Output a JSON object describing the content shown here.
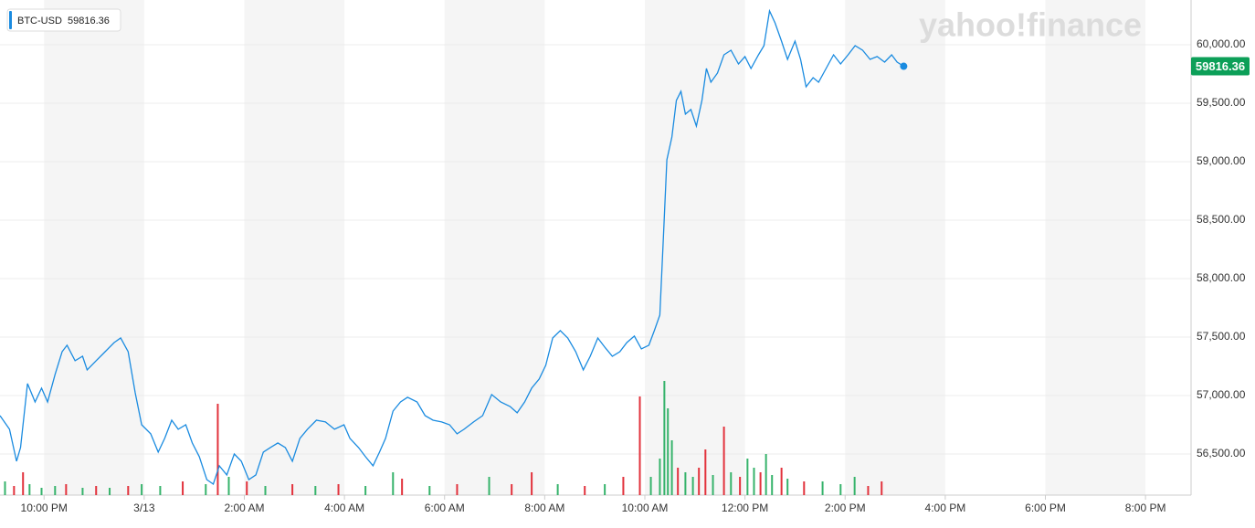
{
  "chart_data": {
    "type": "line",
    "watermark": "yahoo!finance",
    "x": [
      -2.88,
      -2.69,
      -2.55,
      -2.47,
      -2.33,
      -2.18,
      -2.05,
      -1.93,
      -1.78,
      -1.64,
      -1.54,
      -1.38,
      -1.23,
      -1.14,
      -0.96,
      -0.78,
      -0.6,
      -0.47,
      -0.32,
      -0.18,
      -0.05,
      0.13,
      0.28,
      0.41,
      0.55,
      0.68,
      0.83,
      0.96,
      1.1,
      1.25,
      1.38,
      1.5,
      1.65,
      1.8,
      1.94,
      2.09,
      2.23,
      2.38,
      2.52,
      2.67,
      2.82,
      2.96,
      3.11,
      3.26,
      3.44,
      3.62,
      3.8,
      3.99,
      4.11,
      4.28,
      4.42,
      4.57,
      4.7,
      4.82,
      4.97,
      5.12,
      5.26,
      5.45,
      5.61,
      5.77,
      5.94,
      6.1,
      6.25,
      6.39,
      6.58,
      6.76,
      6.94,
      7.12,
      7.31,
      7.45,
      7.6,
      7.74,
      7.89,
      8.02,
      8.16,
      8.31,
      8.46,
      8.62,
      8.77,
      8.91,
      9.06,
      9.2,
      9.35,
      9.5,
      9.64,
      9.79,
      9.93,
      10.08,
      10.19,
      10.3,
      10.37,
      10.44,
      10.54,
      10.63,
      10.72,
      10.81,
      10.92,
      11.03,
      11.14,
      11.23,
      11.32,
      11.45,
      11.58,
      11.72,
      11.87,
      12.0,
      12.12,
      12.27,
      12.38,
      12.49,
      12.6,
      12.73,
      12.85,
      13.0,
      13.11,
      13.22,
      13.36,
      13.47,
      13.62,
      13.77,
      13.91,
      14.06,
      14.2,
      14.35,
      14.5,
      14.64,
      14.79,
      14.93,
      15.04,
      15.17
    ],
    "series": [
      {
        "name": "BTC-USD",
        "color": "#1a8be0",
        "values": [
          56828,
          56711,
          56438,
          56555,
          57102,
          56945,
          57063,
          56945,
          57180,
          57375,
          57430,
          57297,
          57336,
          57219,
          57297,
          57375,
          57453,
          57492,
          57375,
          57024,
          56750,
          56672,
          56516,
          56633,
          56789,
          56711,
          56750,
          56594,
          56477,
          56281,
          56242,
          56399,
          56321,
          56500,
          56438,
          56281,
          56321,
          56516,
          56555,
          56594,
          56555,
          56438,
          56633,
          56711,
          56789,
          56774,
          56711,
          56750,
          56633,
          56555,
          56477,
          56399,
          56516,
          56633,
          56867,
          56945,
          56985,
          56945,
          56828,
          56789,
          56774,
          56750,
          56672,
          56711,
          56774,
          56828,
          57008,
          56945,
          56906,
          56852,
          56945,
          57063,
          57141,
          57258,
          57492,
          57555,
          57492,
          57375,
          57219,
          57336,
          57492,
          57414,
          57336,
          57375,
          57453,
          57508,
          57399,
          57430,
          57555,
          57688,
          58352,
          59016,
          59211,
          59524,
          59602,
          59407,
          59446,
          59305,
          59524,
          59797,
          59680,
          59758,
          59914,
          59953,
          59836,
          59899,
          59797,
          59914,
          59992,
          60289,
          60188,
          60031,
          59875,
          60031,
          59875,
          59641,
          59719,
          59680,
          59797,
          59914,
          59836,
          59914,
          59992,
          59953,
          59875,
          59899,
          59852,
          59914,
          59852,
          59816.36
        ]
      }
    ],
    "volume": {
      "x": [
        -2.78,
        -2.6,
        -2.42,
        -2.29,
        -2.05,
        -1.78,
        -1.56,
        -1.23,
        -0.96,
        -0.69,
        -0.32,
        -0.05,
        0.32,
        0.77,
        1.23,
        1.47,
        1.69,
        2.05,
        2.42,
        2.96,
        3.42,
        3.88,
        4.42,
        4.97,
        5.15,
        5.7,
        6.25,
        6.89,
        7.34,
        7.74,
        8.26,
        8.8,
        9.2,
        9.57,
        9.9,
        10.12,
        10.3,
        10.39,
        10.46,
        10.54,
        10.66,
        10.81,
        10.96,
        11.08,
        11.21,
        11.36,
        11.58,
        11.72,
        11.9,
        12.05,
        12.18,
        12.31,
        12.42,
        12.54,
        12.73,
        12.85,
        13.18,
        13.55,
        13.91,
        14.19,
        14.46,
        14.73
      ],
      "values": [
        15,
        10,
        25,
        12,
        8,
        10,
        12,
        8,
        10,
        8,
        10,
        12,
        10,
        15,
        12,
        100,
        20,
        15,
        10,
        12,
        10,
        12,
        10,
        25,
        18,
        10,
        12,
        20,
        12,
        25,
        12,
        10,
        12,
        20,
        108,
        20,
        40,
        125,
        95,
        60,
        30,
        25,
        20,
        30,
        50,
        22,
        75,
        25,
        20,
        40,
        30,
        25,
        45,
        22,
        30,
        18,
        15,
        15,
        12,
        20,
        10,
        15
      ],
      "direction": [
        "up",
        "down",
        "down",
        "up",
        "up",
        "up",
        "down",
        "up",
        "down",
        "up",
        "down",
        "up",
        "up",
        "down",
        "up",
        "down",
        "up",
        "down",
        "up",
        "down",
        "up",
        "down",
        "up",
        "up",
        "down",
        "up",
        "down",
        "up",
        "down",
        "down",
        "up",
        "down",
        "up",
        "down",
        "down",
        "up",
        "up",
        "up",
        "up",
        "up",
        "down",
        "up",
        "up",
        "down",
        "down",
        "up",
        "down",
        "up",
        "down",
        "up",
        "up",
        "down",
        "up",
        "up",
        "down",
        "up",
        "down",
        "up",
        "up",
        "up",
        "down",
        "down"
      ],
      "up_color": "#36b36b",
      "down_color": "#e2323c",
      "volume_lim": [
        0,
        130
      ]
    },
    "xlim": [
      -2.88,
      20.91
    ],
    "xticks": [
      {
        "value": -2,
        "label": "10:00 PM"
      },
      {
        "value": 0,
        "label": "3/13"
      },
      {
        "value": 2,
        "label": "2:00 AM"
      },
      {
        "value": 4,
        "label": "4:00 AM"
      },
      {
        "value": 6,
        "label": "6:00 AM"
      },
      {
        "value": 8,
        "label": "8:00 AM"
      },
      {
        "value": 10,
        "label": "10:00 AM"
      },
      {
        "value": 12,
        "label": "12:00 PM"
      },
      {
        "value": 14,
        "label": "2:00 PM"
      },
      {
        "value": 16,
        "label": "4:00 PM"
      },
      {
        "value": 18,
        "label": "6:00 PM"
      },
      {
        "value": 20,
        "label": "8:00 PM"
      }
    ],
    "ylim": [
      56148,
      60383
    ],
    "yticks": [
      {
        "value": 56500,
        "label": "56,500.00"
      },
      {
        "value": 57000,
        "label": "57,000.00"
      },
      {
        "value": 57500,
        "label": "57,500.00"
      },
      {
        "value": 58000,
        "label": "58,000.00"
      },
      {
        "value": 58500,
        "label": "58,500.00"
      },
      {
        "value": 59000,
        "label": "59,000.00"
      },
      {
        "value": 59500,
        "label": "59,500.00"
      },
      {
        "value": 60000,
        "label": "60,000.00"
      }
    ],
    "grid": true,
    "shade_color": "#f5f5f5",
    "price_tag_color": "#0c9f58"
  }
}
